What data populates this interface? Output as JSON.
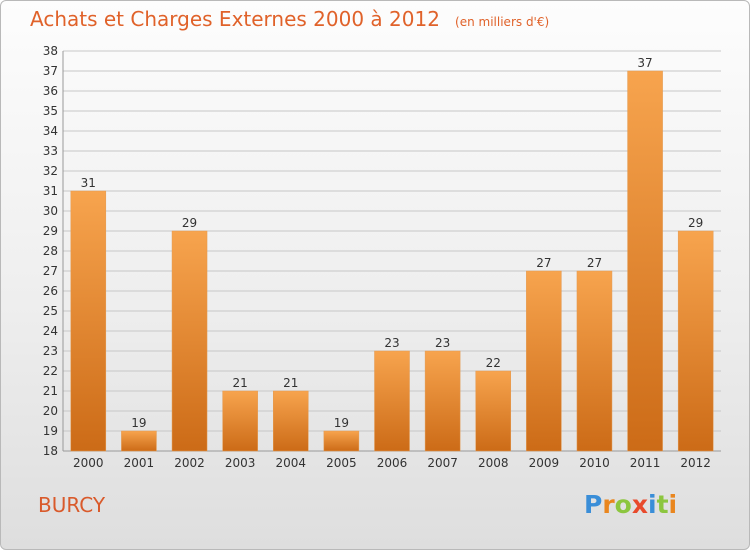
{
  "header": {
    "title": "Achats et Charges Externes 2000 à 2012",
    "unit": "(en milliers d'€)"
  },
  "footer": {
    "city": "BURCY",
    "logo_letters": [
      "P",
      "r",
      "o",
      "x",
      "i",
      "t",
      "i"
    ],
    "logo_colors": [
      "#3a8ed8",
      "#e9861e",
      "#8cc63f",
      "#e84a2c",
      "#3a8ed8",
      "#8cc63f",
      "#e9861e"
    ]
  },
  "colors": {
    "bar_light": "#f7a44e",
    "bar_dark": "#cc6b17",
    "grid": "#c7c7c7",
    "text": "#333333",
    "accent": "#e0622a"
  },
  "chart_data": {
    "type": "bar",
    "categories": [
      "2000",
      "2001",
      "2002",
      "2003",
      "2004",
      "2005",
      "2006",
      "2007",
      "2008",
      "2009",
      "2010",
      "2011",
      "2012"
    ],
    "values": [
      31,
      19,
      29,
      21,
      21,
      19,
      23,
      23,
      22,
      27,
      27,
      37,
      29
    ],
    "ylim": [
      18,
      38
    ],
    "yticks": [
      18,
      19,
      20,
      21,
      22,
      23,
      24,
      25,
      26,
      27,
      28,
      29,
      30,
      31,
      32,
      33,
      34,
      35,
      36,
      37,
      38
    ],
    "grid": true,
    "xlabel": "",
    "ylabel": ""
  }
}
